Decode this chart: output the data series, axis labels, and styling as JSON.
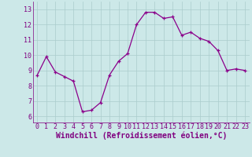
{
  "x": [
    0,
    1,
    2,
    3,
    4,
    5,
    6,
    7,
    8,
    9,
    10,
    11,
    12,
    13,
    14,
    15,
    16,
    17,
    18,
    19,
    20,
    21,
    22,
    23
  ],
  "y": [
    8.7,
    9.9,
    8.9,
    8.6,
    8.3,
    6.3,
    6.4,
    6.9,
    8.7,
    9.6,
    10.1,
    12.0,
    12.8,
    12.8,
    12.4,
    12.5,
    11.3,
    11.5,
    11.1,
    10.9,
    10.3,
    9.0,
    9.1,
    9.0
  ],
  "line_color": "#8B008B",
  "marker": "+",
  "background_color": "#cce8e8",
  "grid_color": "#aacccc",
  "xlabel": "Windchill (Refroidissement éolien,°C)",
  "xlabel_fontsize": 7,
  "xlabel_color": "#800080",
  "ylabel_ticks": [
    6,
    7,
    8,
    9,
    10,
    11,
    12,
    13
  ],
  "xlim": [
    -0.5,
    23.5
  ],
  "ylim": [
    5.6,
    13.5
  ],
  "tick_fontsize": 6,
  "tick_color": "#800080"
}
